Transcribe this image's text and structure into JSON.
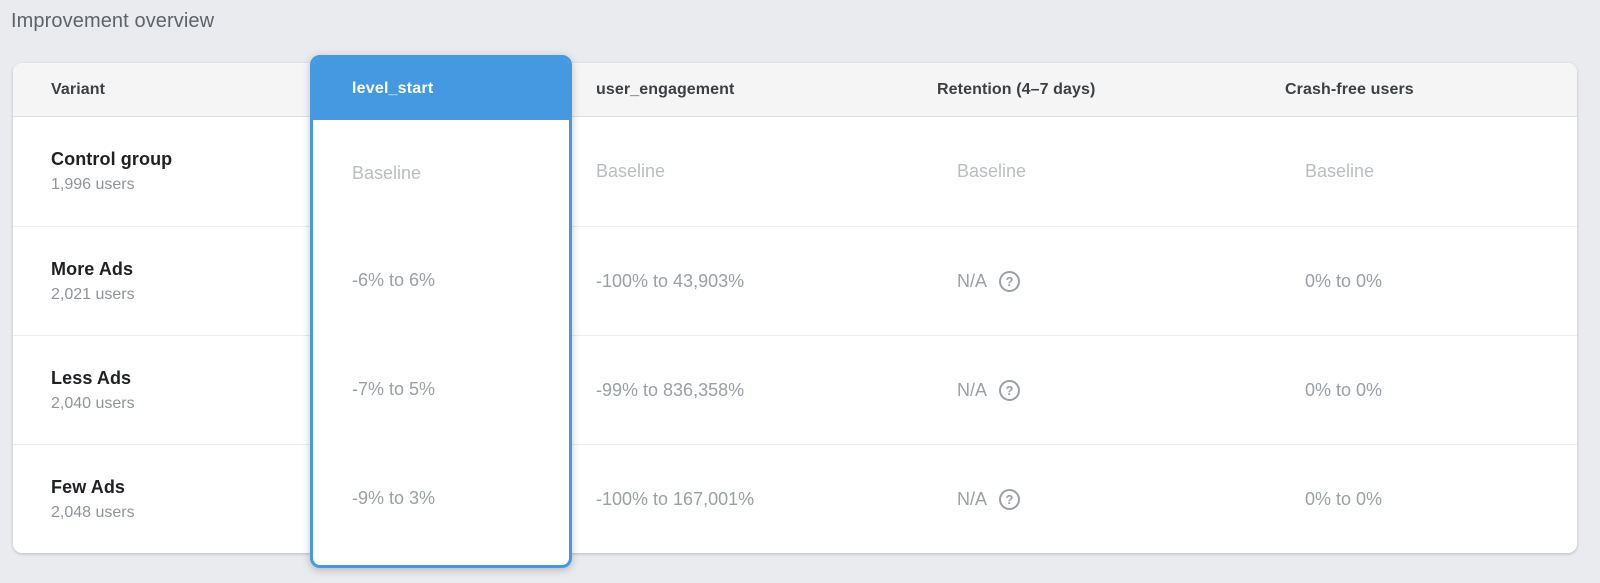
{
  "page": {
    "title": "Improvement overview"
  },
  "colors": {
    "accent_blue": "#4499e0",
    "page_background": "#e9ebee",
    "header_background": "#f5f5f6"
  },
  "table": {
    "columns": [
      {
        "id": "variant",
        "label": "Variant",
        "selected": false
      },
      {
        "id": "level_start",
        "label": "level_start",
        "selected": true
      },
      {
        "id": "user_engagement",
        "label": "user_engagement",
        "selected": false
      },
      {
        "id": "retention",
        "label": "Retention (4–7 days)",
        "selected": false
      },
      {
        "id": "crash_free",
        "label": "Crash-free users",
        "selected": false
      }
    ],
    "help_icon": "?",
    "rows": [
      {
        "variant": "Control group",
        "users": "1,996 users",
        "level_start": "Baseline",
        "user_engagement": "Baseline",
        "retention": "Baseline",
        "crash_free": "Baseline",
        "is_baseline": true
      },
      {
        "variant": "More Ads",
        "users": "2,021 users",
        "level_start": "-6% to 6%",
        "user_engagement": "-100% to 43,903%",
        "retention": "N/A",
        "crash_free": "0% to 0%",
        "is_baseline": false
      },
      {
        "variant": "Less Ads",
        "users": "2,040 users",
        "level_start": "-7% to 5%",
        "user_engagement": "-99% to 836,358%",
        "retention": "N/A",
        "crash_free": "0% to 0%",
        "is_baseline": false
      },
      {
        "variant": "Few Ads",
        "users": "2,048 users",
        "level_start": "-9% to 3%",
        "user_engagement": "-100% to 167,001%",
        "retention": "N/A",
        "crash_free": "0% to 0%",
        "is_baseline": false
      }
    ]
  }
}
